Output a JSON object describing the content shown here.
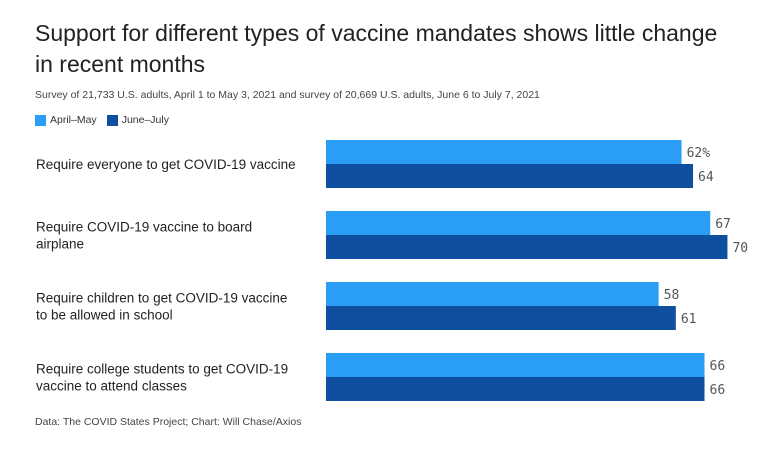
{
  "chart_data": {
    "type": "bar",
    "orientation": "horizontal",
    "title": "Support for different types of vaccine mandates shows little change in recent months",
    "subtitle": "Survey of 21,733 U.S. adults, April 1 to May 3, 2021 and survey of 20,669 U.S. adults, June 6 to July 7, 2021",
    "categories": [
      [
        "Require everyone to get COVID-19 vaccine"
      ],
      [
        "Require COVID-19 vaccine to board",
        "airplane"
      ],
      [
        "Require children to get COVID-19 vaccine",
        "to be allowed in school"
      ],
      [
        "Require college students to get COVID-19",
        "vaccine to attend classes"
      ]
    ],
    "series": [
      {
        "name": "April–May",
        "color": "#2a9df4",
        "values": [
          62,
          67,
          58,
          66
        ],
        "labels": [
          "62%",
          "67",
          "58",
          "66"
        ]
      },
      {
        "name": "June–July",
        "color": "#0e4fa0",
        "values": [
          64,
          70,
          61,
          66
        ],
        "labels": [
          "64",
          "70",
          "61",
          "66"
        ]
      }
    ],
    "xlim": [
      0,
      70
    ],
    "grid": false,
    "legend": "top-left",
    "source": "Data: The COVID States Project; Chart: Will Chase/Axios"
  }
}
